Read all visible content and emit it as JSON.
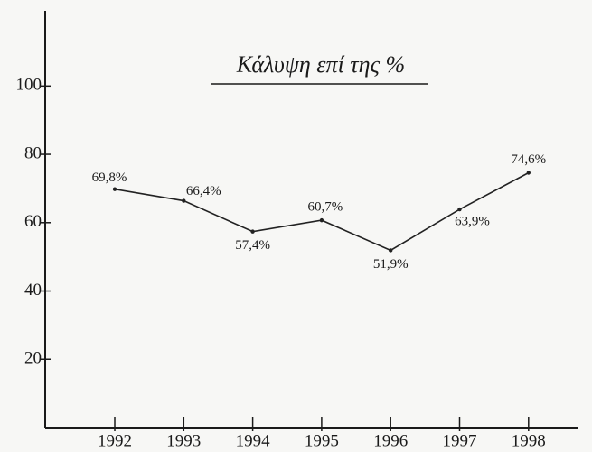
{
  "chart_data": {
    "type": "line",
    "title": "Κάλυψη επί της %",
    "categories": [
      "1992",
      "1993",
      "1994",
      "1995",
      "1996",
      "1997",
      "1998"
    ],
    "values": [
      69.8,
      66.4,
      57.4,
      60.7,
      51.9,
      63.9,
      74.6
    ],
    "value_labels": [
      "69,8%",
      "66,4%",
      "57,4%",
      "60,7%",
      "51,9%",
      "63,9%",
      "74,6%"
    ],
    "color": "#222222",
    "ylim": [
      0,
      122
    ],
    "yticks": [
      20,
      40,
      60,
      80,
      100
    ],
    "grid": false
  }
}
